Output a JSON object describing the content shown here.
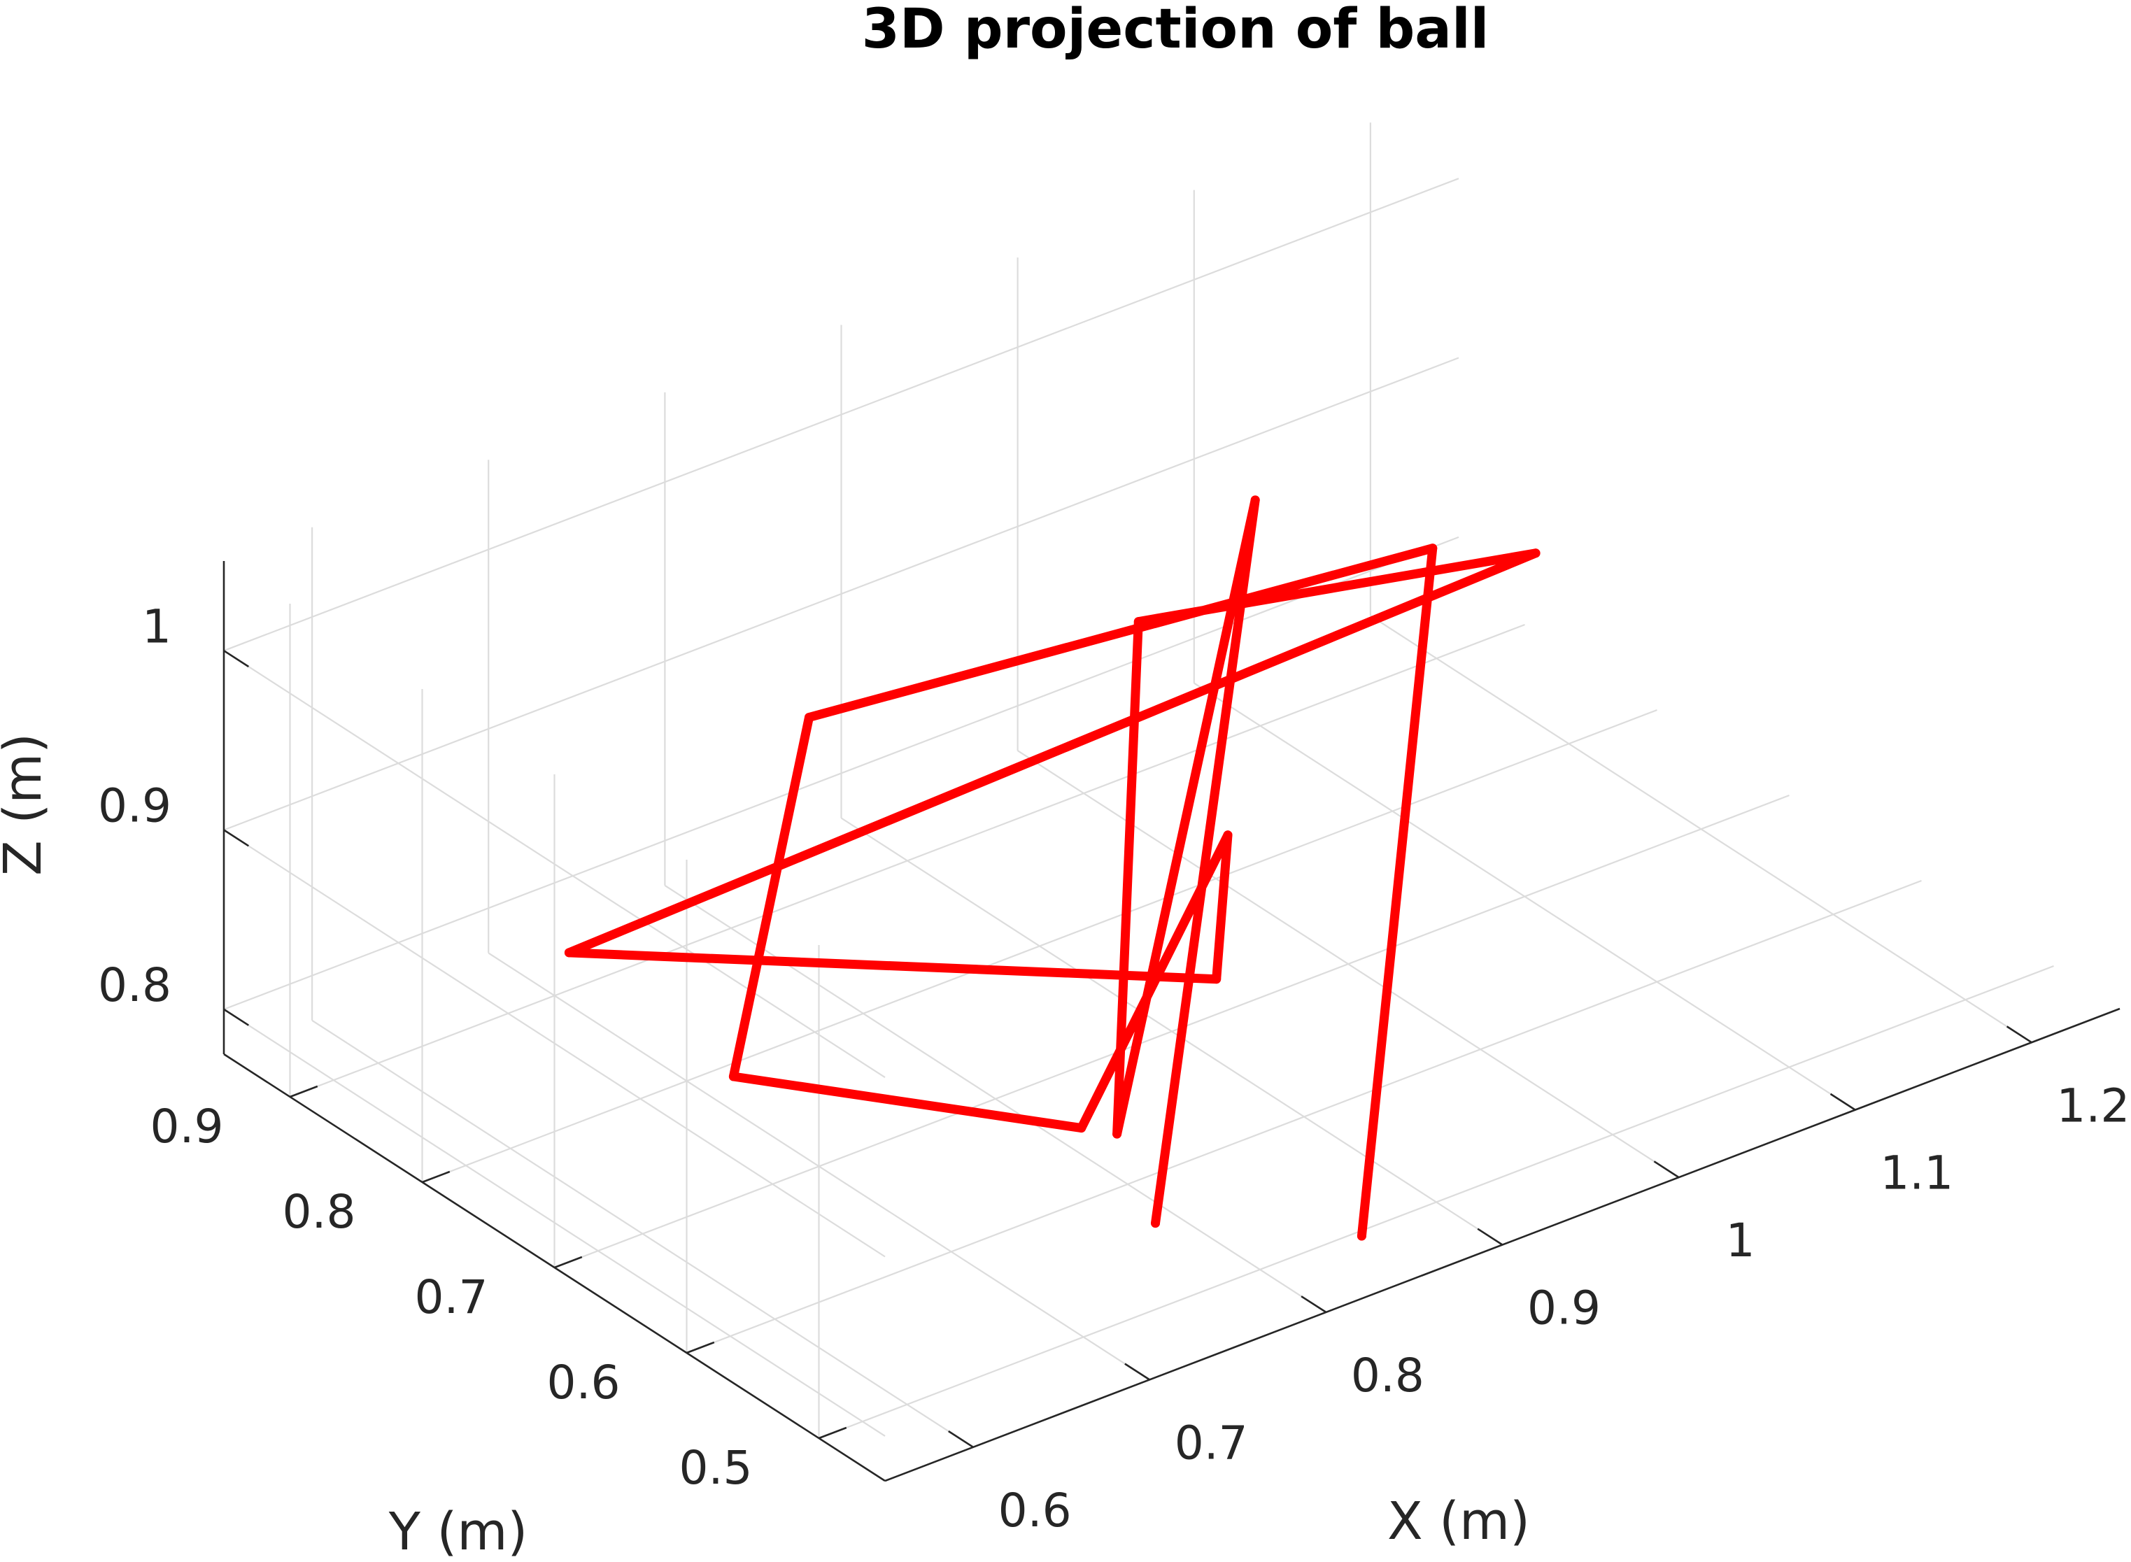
{
  "chart_data": {
    "type": "line3d",
    "title": "3D projection of ball",
    "xlabel": "X (m)",
    "ylabel": "Y (m)",
    "zlabel": "Z (m)",
    "xlim": [
      0.55,
      1.25
    ],
    "ylim": [
      0.45,
      0.95
    ],
    "zlim": [
      0.775,
      1.05
    ],
    "xticks": [
      0.6,
      0.7,
      0.8,
      0.9,
      1,
      1.1,
      1.2
    ],
    "xtick_labels": [
      "0.6",
      "0.7",
      "0.8",
      "0.9",
      "1",
      "1.1",
      "1.2"
    ],
    "yticks": [
      0.5,
      0.6,
      0.7,
      0.8,
      0.9
    ],
    "ytick_labels": [
      "0.5",
      "0.6",
      "0.7",
      "0.8",
      "0.9"
    ],
    "zticks": [
      0.8,
      0.9,
      1.0
    ],
    "ztick_labels": [
      "0.8",
      "0.9",
      "1"
    ],
    "grid": true,
    "series": [
      {
        "color": "#ff0000",
        "points": [
          {
            "x": 0.83,
            "y": 0.463,
            "z": 0.8
          },
          {
            "x": 1.2,
            "y": 0.903,
            "z": 0.835
          },
          {
            "x": 0.86,
            "y": 0.921,
            "z": 0.86
          },
          {
            "x": 0.635,
            "y": 0.678,
            "z": 0.86
          },
          {
            "x": 0.77,
            "y": 0.595,
            "z": 0.82
          },
          {
            "x": 0.865,
            "y": 0.611,
            "z": 0.94
          },
          {
            "x": 0.92,
            "y": 0.693,
            "z": 0.8
          },
          {
            "x": 0.625,
            "y": 0.789,
            "z": 0.88
          },
          {
            "x": 1.14,
            "y": 0.745,
            "z": 0.93
          },
          {
            "x": 1.04,
            "y": 0.912,
            "z": 0.85
          },
          {
            "x": 0.725,
            "y": 0.508,
            "z": 0.875
          },
          {
            "x": 1.02,
            "y": 0.797,
            "z": 0.98
          },
          {
            "x": 0.734,
            "y": 0.491,
            "z": 0.83
          }
        ]
      }
    ]
  }
}
